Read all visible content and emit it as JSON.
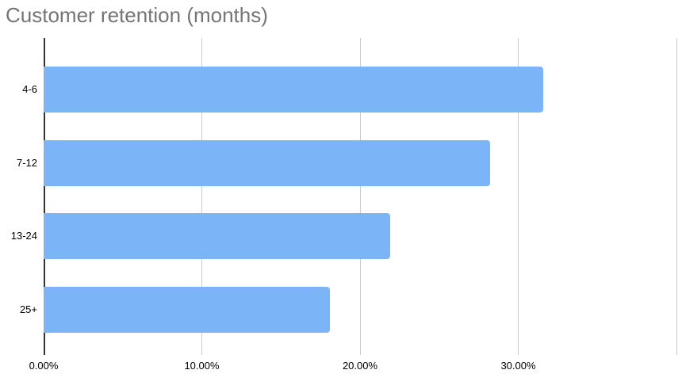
{
  "chart_data": {
    "type": "bar",
    "orientation": "horizontal",
    "title": "Customer retention (months)",
    "categories": [
      "4-6",
      "7-12",
      "13-24",
      "25+"
    ],
    "values": [
      31.6,
      28.2,
      21.9,
      18.1
    ],
    "xlabel": "",
    "ylabel": "",
    "xlim": [
      0,
      40
    ],
    "x_tick_values": [
      0,
      10,
      20,
      30
    ],
    "x_tick_labels": [
      "0.00%",
      "10.00%",
      "20.00%",
      "30.00%"
    ],
    "gridline_values": [
      0,
      10,
      20,
      30,
      40
    ],
    "grid": true,
    "legend": "none",
    "bar_color": "#7cb5f7",
    "title_color": "#757575",
    "axis_line_color": "#333333",
    "gridline_color": "#cccccc",
    "label_color": "#000000"
  }
}
